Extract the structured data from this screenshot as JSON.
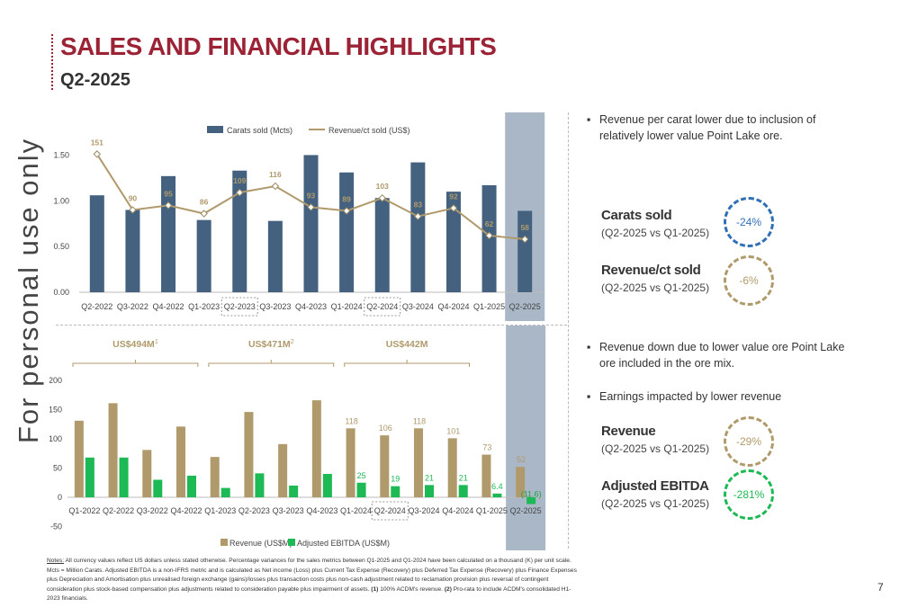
{
  "header": {
    "title": "SALES AND FINANCIAL HIGHLIGHTS",
    "subtitle": "Q2-2025"
  },
  "watermark": "For personal use only",
  "chart_data": [
    {
      "type": "bar",
      "categories": [
        "Q2-2022",
        "Q3-2022",
        "Q4-2022",
        "Q1-2023",
        "Q2-2023",
        "Q3-2023",
        "Q4-2023",
        "Q1-2024",
        "Q2-2024",
        "Q3-2024",
        "Q4-2024",
        "Q1-2025",
        "Q2-2025"
      ],
      "series": [
        {
          "name": "Carats sold (Mcts)",
          "type": "bar",
          "color": "#44627f",
          "values": [
            1.06,
            0.9,
            1.27,
            0.79,
            1.33,
            0.78,
            1.5,
            1.31,
            1.03,
            1.42,
            1.1,
            1.17,
            0.89
          ]
        },
        {
          "name": "Revenue/ct sold (US$)",
          "type": "line",
          "color": "#b09a6c",
          "values": [
            151,
            90,
            95,
            86,
            109,
            116,
            93,
            89,
            103,
            83,
            92,
            62,
            58
          ]
        }
      ],
      "yticks": [
        "0.00",
        "0.50",
        "1.00",
        "1.50"
      ],
      "ylim": [
        0,
        1.75
      ],
      "line_ylim": [
        0,
        175
      ],
      "dotted_categories": [
        "Q2-2023",
        "Q2-2024"
      ],
      "highlight_category": "Q2-2025",
      "legend": "top-center"
    },
    {
      "type": "bar",
      "categories": [
        "Q1-2022",
        "Q2-2022",
        "Q3-2022",
        "Q4-2022",
        "Q1-2023",
        "Q2-2023",
        "Q3-2023",
        "Q4-2023",
        "Q1-2024",
        "Q2-2024",
        "Q3-2024",
        "Q4-2024",
        "Q1-2025",
        "Q2-2025"
      ],
      "series": [
        {
          "name": "Revenue (US$M)",
          "color": "#b09a6c",
          "values": [
            131,
            161,
            81,
            121,
            69,
            146,
            91,
            166,
            118,
            106,
            118,
            101,
            73,
            52
          ],
          "labels": [
            "",
            "",
            "",
            "",
            "",
            "",
            "",
            "",
            "118",
            "106",
            "118",
            "101",
            "73",
            "52"
          ]
        },
        {
          "name": "Adjusted EBITDA (US$M)",
          "color": "#1db954",
          "values": [
            68,
            68,
            30,
            37,
            16,
            41,
            20,
            40,
            25,
            19,
            21,
            21,
            6.4,
            -11.6
          ],
          "labels": [
            "",
            "",
            "",
            "",
            "",
            "",
            "",
            "",
            "25",
            "19",
            "21",
            "21",
            "6.4",
            "(11.6)"
          ]
        }
      ],
      "yticks": [
        "-50",
        "0",
        "50",
        "100",
        "150",
        "200"
      ],
      "ylim": [
        -50,
        200
      ],
      "dotted_categories": [
        "Q2-2024"
      ],
      "highlight_category": "Q2-2025",
      "legend": "bottom-center",
      "brackets": [
        {
          "label": "US$494M",
          "sup": "1",
          "from": "Q1-2022",
          "to": "Q4-2022"
        },
        {
          "label": "US$471M",
          "sup": "2",
          "from": "Q1-2023",
          "to": "Q4-2023"
        },
        {
          "label": "US$442M",
          "sup": "",
          "from": "Q1-2024",
          "to": "Q4-2024"
        }
      ]
    }
  ],
  "commentary": {
    "bullet1": "Revenue per carat lower due to inclusion of relatively lower value Point Lake ore.",
    "bullet2": "Revenue down due to lower value ore Point Lake ore included in the ore mix.",
    "bullet3": "Earnings impacted by lower revenue",
    "bullet_marker": "▪"
  },
  "metrics": [
    {
      "name": "Carats sold",
      "sub": "(Q2-2025 vs Q1-2025)",
      "change": "-24%",
      "color": "#2f6fb5"
    },
    {
      "name": "Revenue/ct sold",
      "sub": "(Q2-2025 vs Q1-2025)",
      "change": "-6%",
      "color": "#b09a6c"
    },
    {
      "name": "Revenue",
      "sub": "(Q2-2025 vs Q1-2025)",
      "change": "-29%",
      "color": "#b09a6c"
    },
    {
      "name": "Adjusted EBITDA",
      "sub": "(Q2-2025 vs Q1-2025)",
      "change": "-281%",
      "color": "#1db954"
    }
  ],
  "notes": {
    "label": "Notes:",
    "text": " All currency values reflect US dollars unless stated otherwise. Percentage variances for the sales metrics between Q1-2025 and Q1-2024 have been calculated on a thousand (K) per unit scale. Mcts = Million Carats. Adjusted EBITDA is a non-IFRS metric and is calculated as Net income (Loss) plus Current Tax Expense (Recovery) plus Deferred Tax Expense (Recovery) plus Finance Expenses plus Depreciation and Amortisation plus unrealised foreign exchange (gains)/losses plus transaction costs plus non-cash adjustment related to reclamation provision plus reversal of contingent consideration plus stock-based compensation plus adjustments related to consideration payable plus impairment of assets. ",
    "n1": "(1)",
    "n1_text": " 100% ACDM's revenue. ",
    "n2": "(2)",
    "n2_text": " Pro-rata to include ACDM's consolidated H1-2023 financials."
  },
  "page_number": "7"
}
